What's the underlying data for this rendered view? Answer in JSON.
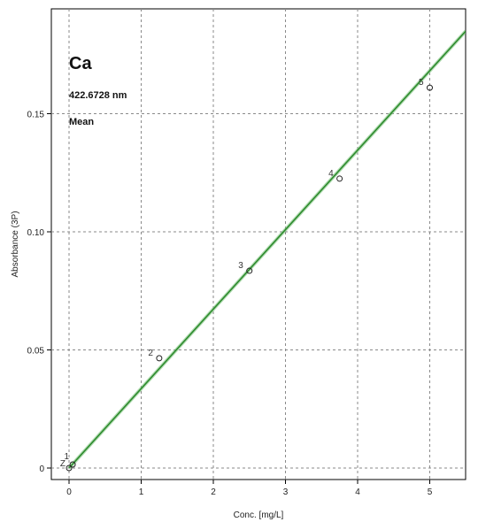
{
  "chart_data": {
    "type": "scatter",
    "element": "Ca",
    "wavelength": "422.6728 nm",
    "mode": "Mean",
    "xlabel": "Conc. [mg/L]",
    "ylabel": "Absorbance (3P)",
    "xlim": [
      -0.25,
      5.5
    ],
    "ylim": [
      -0.01,
      0.185
    ],
    "x_ticks": [
      0,
      1,
      2,
      3,
      4,
      5
    ],
    "x_tick_labels": [
      "0",
      "1",
      "2",
      "3",
      "4",
      "5"
    ],
    "y_ticks": [
      0,
      0.05,
      0.1,
      0.15
    ],
    "y_tick_labels": [
      "0",
      "0.05",
      "0.10",
      "0.15"
    ],
    "grid": true,
    "points": [
      {
        "label": "Z",
        "x": 0.0,
        "y": 0.0
      },
      {
        "label": "1",
        "x": 0.05,
        "y": 0.0015
      },
      {
        "label": "2",
        "x": 1.25,
        "y": 0.0465
      },
      {
        "label": "3",
        "x": 2.5,
        "y": 0.0835
      },
      {
        "label": "4",
        "x": 3.75,
        "y": 0.1225
      },
      {
        "label": "5",
        "x": 5.0,
        "y": 0.161
      }
    ],
    "fit_line": {
      "x": [
        0,
        5.5
      ],
      "y": [
        0,
        0.185
      ],
      "color": "#2e8b2e"
    }
  }
}
